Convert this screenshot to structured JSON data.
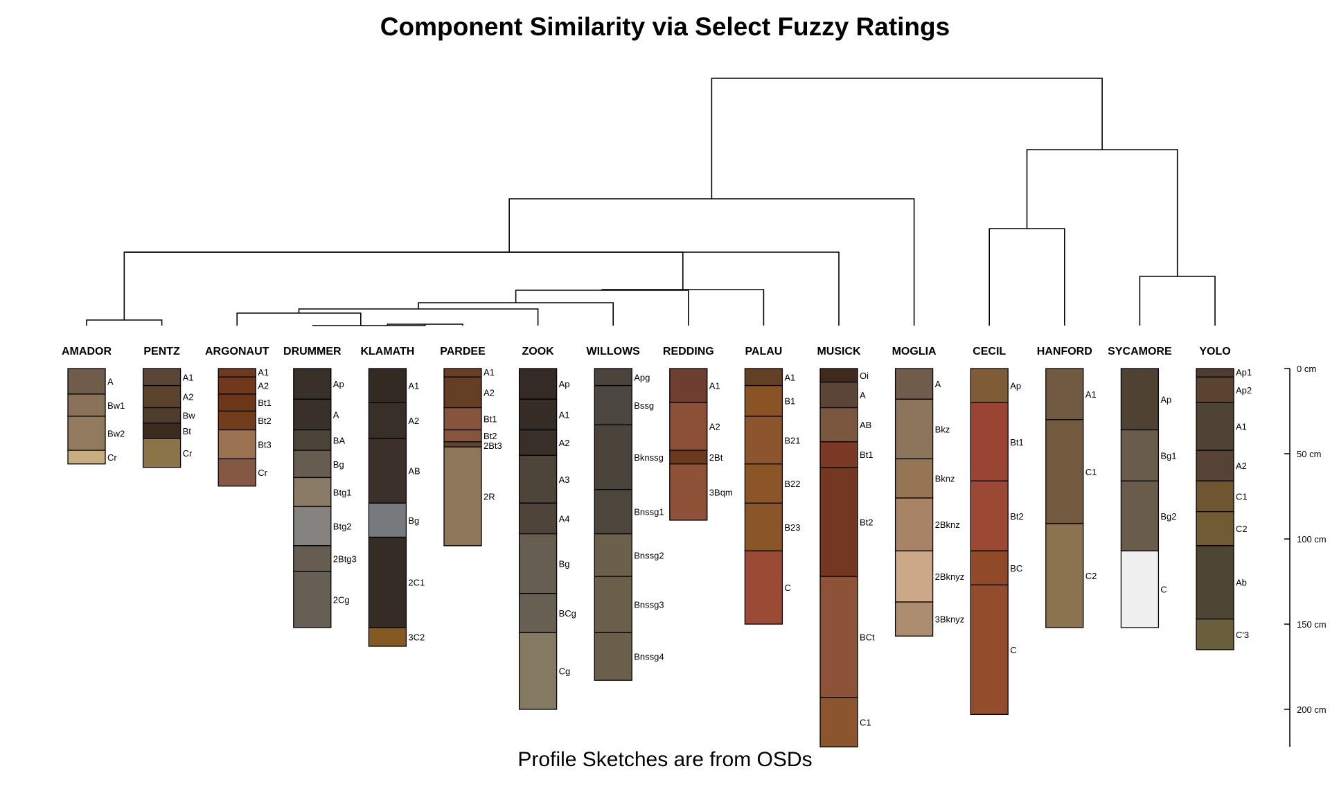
{
  "title": "Component Similarity via Select Fuzzy Ratings",
  "subtitle": "Profile Sketches are from OSDs",
  "depth_scale": {
    "unit": "cm",
    "ticks": [
      0,
      50,
      100,
      150,
      200
    ],
    "labels": [
      "0 cm",
      "50 cm",
      "100 cm",
      "150 cm",
      "200 cm"
    ],
    "max_depth": 222
  },
  "dendrogram_leaf_order": [
    "AMADOR",
    "PENTZ",
    "ARGONAUT",
    "DRUMMER",
    "KLAMATH",
    "PARDEE",
    "ZOOK",
    "WILLOWS",
    "REDDING",
    "PALAU",
    "MUSICK",
    "MOGLIA",
    "CECIL",
    "HANFORD",
    "SYCAMORE",
    "YOLO"
  ],
  "profiles": [
    {
      "name": "AMADOR",
      "horizons": [
        {
          "name": "A",
          "top": 0,
          "bottom": 15,
          "color": "#6f5c4b"
        },
        {
          "name": "Bw1",
          "top": 15,
          "bottom": 28,
          "color": "#8b7359"
        },
        {
          "name": "Bw2",
          "top": 28,
          "bottom": 48,
          "color": "#917a5d"
        },
        {
          "name": "Cr",
          "top": 48,
          "bottom": 56,
          "color": "#c8ad80"
        }
      ]
    },
    {
      "name": "PENTZ",
      "horizons": [
        {
          "name": "A1",
          "top": 0,
          "bottom": 10,
          "color": "#5a4536"
        },
        {
          "name": "A2",
          "top": 10,
          "bottom": 23,
          "color": "#5b432b"
        },
        {
          "name": "Bw",
          "top": 23,
          "bottom": 32,
          "color": "#4e3c2d"
        },
        {
          "name": "Bt",
          "top": 32,
          "bottom": 41,
          "color": "#3d2b20"
        },
        {
          "name": "Cr",
          "top": 41,
          "bottom": 58,
          "color": "#8c7449"
        }
      ]
    },
    {
      "name": "ARGONAUT",
      "horizons": [
        {
          "name": "A1",
          "top": 0,
          "bottom": 5,
          "color": "#6d3a1e"
        },
        {
          "name": "A2",
          "top": 5,
          "bottom": 15,
          "color": "#6f3a1c"
        },
        {
          "name": "Bt1",
          "top": 15,
          "bottom": 25,
          "color": "#6b3718"
        },
        {
          "name": "Bt2",
          "top": 25,
          "bottom": 36,
          "color": "#713e1d"
        },
        {
          "name": "Bt3",
          "top": 36,
          "bottom": 53,
          "color": "#9b7251"
        },
        {
          "name": "Cr",
          "top": 53,
          "bottom": 69,
          "color": "#855844"
        }
      ]
    },
    {
      "name": "DRUMMER",
      "horizons": [
        {
          "name": "Ap",
          "top": 0,
          "bottom": 18,
          "color": "#3a302a"
        },
        {
          "name": "A",
          "top": 18,
          "bottom": 36,
          "color": "#3a302a"
        },
        {
          "name": "BA",
          "top": 36,
          "bottom": 48,
          "color": "#4c4339"
        },
        {
          "name": "Bg",
          "top": 48,
          "bottom": 64,
          "color": "#675c50"
        },
        {
          "name": "Btg1",
          "top": 64,
          "bottom": 81,
          "color": "#8a7b66"
        },
        {
          "name": "Btg2",
          "top": 81,
          "bottom": 104,
          "color": "#858380"
        },
        {
          "name": "2Btg3",
          "top": 104,
          "bottom": 119,
          "color": "#665c51"
        },
        {
          "name": "2Cg",
          "top": 119,
          "bottom": 152,
          "color": "#675e55"
        }
      ]
    },
    {
      "name": "KLAMATH",
      "horizons": [
        {
          "name": "A1",
          "top": 0,
          "bottom": 20,
          "color": "#332a24"
        },
        {
          "name": "A2",
          "top": 20,
          "bottom": 41,
          "color": "#382f29"
        },
        {
          "name": "AB",
          "top": 41,
          "bottom": 79,
          "color": "#3b302a"
        },
        {
          "name": "Bg",
          "top": 79,
          "bottom": 99,
          "color": "#767a7c"
        },
        {
          "name": "2C1",
          "top": 99,
          "bottom": 152,
          "color": "#342c25"
        },
        {
          "name": "3C2",
          "top": 152,
          "bottom": 163,
          "color": "#855a22"
        }
      ]
    },
    {
      "name": "PARDEE",
      "horizons": [
        {
          "name": "A1",
          "top": 0,
          "bottom": 5,
          "color": "#663f24"
        },
        {
          "name": "A2",
          "top": 5,
          "bottom": 23,
          "color": "#653f23"
        },
        {
          "name": "Bt1",
          "top": 23,
          "bottom": 36,
          "color": "#87553e"
        },
        {
          "name": "Bt2",
          "top": 36,
          "bottom": 43,
          "color": "#87553e"
        },
        {
          "name": "2Bt3",
          "top": 43,
          "bottom": 46,
          "color": "#5e4433"
        },
        {
          "name": "2R",
          "top": 46,
          "bottom": 104,
          "color": "#8e765a"
        }
      ]
    },
    {
      "name": "ZOOK",
      "horizons": [
        {
          "name": "Ap",
          "top": 0,
          "bottom": 18,
          "color": "#342b26"
        },
        {
          "name": "A1",
          "top": 18,
          "bottom": 36,
          "color": "#352c26"
        },
        {
          "name": "A2",
          "top": 36,
          "bottom": 51,
          "color": "#382f28"
        },
        {
          "name": "A3",
          "top": 51,
          "bottom": 79,
          "color": "#4d443a"
        },
        {
          "name": "A4",
          "top": 79,
          "bottom": 97,
          "color": "#4e443a"
        },
        {
          "name": "Bg",
          "top": 97,
          "bottom": 132,
          "color": "#665e51"
        },
        {
          "name": "BCg",
          "top": 132,
          "bottom": 155,
          "color": "#686053"
        },
        {
          "name": "Cg",
          "top": 155,
          "bottom": 200,
          "color": "#847a62"
        }
      ]
    },
    {
      "name": "WILLOWS",
      "horizons": [
        {
          "name": "Apg",
          "top": 0,
          "bottom": 10,
          "color": "#4a443d"
        },
        {
          "name": "Bssg",
          "top": 10,
          "bottom": 33,
          "color": "#4b4640"
        },
        {
          "name": "Bknssg",
          "top": 33,
          "bottom": 71,
          "color": "#4a443d"
        },
        {
          "name": "Bnssg1",
          "top": 71,
          "bottom": 97,
          "color": "#4d463c"
        },
        {
          "name": "Bnssg2",
          "top": 97,
          "bottom": 122,
          "color": "#6a604b"
        },
        {
          "name": "Bnssg3",
          "top": 122,
          "bottom": 155,
          "color": "#6a5f4a"
        },
        {
          "name": "Bnssg4",
          "top": 155,
          "bottom": 183,
          "color": "#695f4b"
        }
      ]
    },
    {
      "name": "REDDING",
      "horizons": [
        {
          "name": "A1",
          "top": 0,
          "bottom": 20,
          "color": "#6e3e31"
        },
        {
          "name": "A2",
          "top": 20,
          "bottom": 48,
          "color": "#8c5038"
        },
        {
          "name": "2Bt",
          "top": 48,
          "bottom": 56,
          "color": "#6b3a1e"
        },
        {
          "name": "3Bqm",
          "top": 56,
          "bottom": 89,
          "color": "#8e5238"
        }
      ]
    },
    {
      "name": "PALAU",
      "horizons": [
        {
          "name": "A1",
          "top": 0,
          "bottom": 10,
          "color": "#633f23"
        },
        {
          "name": "B1",
          "top": 10,
          "bottom": 28,
          "color": "#8a5326"
        },
        {
          "name": "B21",
          "top": 28,
          "bottom": 56,
          "color": "#8c552e"
        },
        {
          "name": "B22",
          "top": 56,
          "bottom": 79,
          "color": "#8b5528"
        },
        {
          "name": "B23",
          "top": 79,
          "bottom": 107,
          "color": "#8a5628"
        },
        {
          "name": "C",
          "top": 107,
          "bottom": 150,
          "color": "#9a4a35"
        }
      ]
    },
    {
      "name": "MUSICK",
      "horizons": [
        {
          "name": "Oi",
          "top": 0,
          "bottom": 8,
          "color": "#3f2a1e"
        },
        {
          "name": "A",
          "top": 8,
          "bottom": 23,
          "color": "#5a4536"
        },
        {
          "name": "AB",
          "top": 23,
          "bottom": 43,
          "color": "#7a5840"
        },
        {
          "name": "Bt1",
          "top": 43,
          "bottom": 58,
          "color": "#7b3a25"
        },
        {
          "name": "Bt2",
          "top": 58,
          "bottom": 122,
          "color": "#733722"
        },
        {
          "name": "BCt",
          "top": 122,
          "bottom": 193,
          "color": "#8d5338"
        },
        {
          "name": "C1",
          "top": 193,
          "bottom": 222,
          "color": "#8b552e"
        }
      ]
    },
    {
      "name": "MOGLIA",
      "horizons": [
        {
          "name": "A",
          "top": 0,
          "bottom": 18,
          "color": "#6f5c4b"
        },
        {
          "name": "Bkz",
          "top": 18,
          "bottom": 53,
          "color": "#8d755b"
        },
        {
          "name": "Bknz",
          "top": 53,
          "bottom": 76,
          "color": "#957553"
        },
        {
          "name": "2Bknz",
          "top": 76,
          "bottom": 107,
          "color": "#a88366"
        },
        {
          "name": "2Bknyz",
          "top": 107,
          "bottom": 137,
          "color": "#cda888"
        },
        {
          "name": "3Bknyz",
          "top": 137,
          "bottom": 157,
          "color": "#ad8d6f"
        }
      ]
    },
    {
      "name": "CECIL",
      "horizons": [
        {
          "name": "Ap",
          "top": 0,
          "bottom": 20,
          "color": "#7f5b38"
        },
        {
          "name": "Bt1",
          "top": 20,
          "bottom": 66,
          "color": "#9a4533"
        },
        {
          "name": "Bt2",
          "top": 66,
          "bottom": 107,
          "color": "#9b4835"
        },
        {
          "name": "BC",
          "top": 107,
          "bottom": 127,
          "color": "#8f4a28"
        },
        {
          "name": "C",
          "top": 127,
          "bottom": 203,
          "color": "#934c2c"
        }
      ]
    },
    {
      "name": "HANFORD",
      "horizons": [
        {
          "name": "A1",
          "top": 0,
          "bottom": 30,
          "color": "#715a42"
        },
        {
          "name": "C1",
          "top": 30,
          "bottom": 91,
          "color": "#745a3f"
        },
        {
          "name": "C2",
          "top": 91,
          "bottom": 152,
          "color": "#8d7450"
        }
      ]
    },
    {
      "name": "SYCAMORE",
      "horizons": [
        {
          "name": "Ap",
          "top": 0,
          "bottom": 36,
          "color": "#4f4233"
        },
        {
          "name": "Bg1",
          "top": 36,
          "bottom": 66,
          "color": "#6a5c4a"
        },
        {
          "name": "Bg2",
          "top": 66,
          "bottom": 107,
          "color": "#6a5c4a"
        },
        {
          "name": "C",
          "top": 107,
          "bottom": 152,
          "color": "#f0f0f0"
        }
      ]
    },
    {
      "name": "YOLO",
      "horizons": [
        {
          "name": "Ap1",
          "top": 0,
          "bottom": 5,
          "color": "#4f3d2f"
        },
        {
          "name": "Ap2",
          "top": 5,
          "bottom": 20,
          "color": "#5a4331"
        },
        {
          "name": "A1",
          "top": 20,
          "bottom": 48,
          "color": "#4e4334"
        },
        {
          "name": "A2",
          "top": 48,
          "bottom": 66,
          "color": "#564335"
        },
        {
          "name": "C1",
          "top": 66,
          "bottom": 84,
          "color": "#6f5631"
        },
        {
          "name": "C2",
          "top": 84,
          "bottom": 104,
          "color": "#705b35"
        },
        {
          "name": "Ab",
          "top": 104,
          "bottom": 147,
          "color": "#4f4534"
        },
        {
          "name": "C'3",
          "top": 147,
          "bottom": 165,
          "color": "#6a5e3c"
        }
      ]
    }
  ]
}
